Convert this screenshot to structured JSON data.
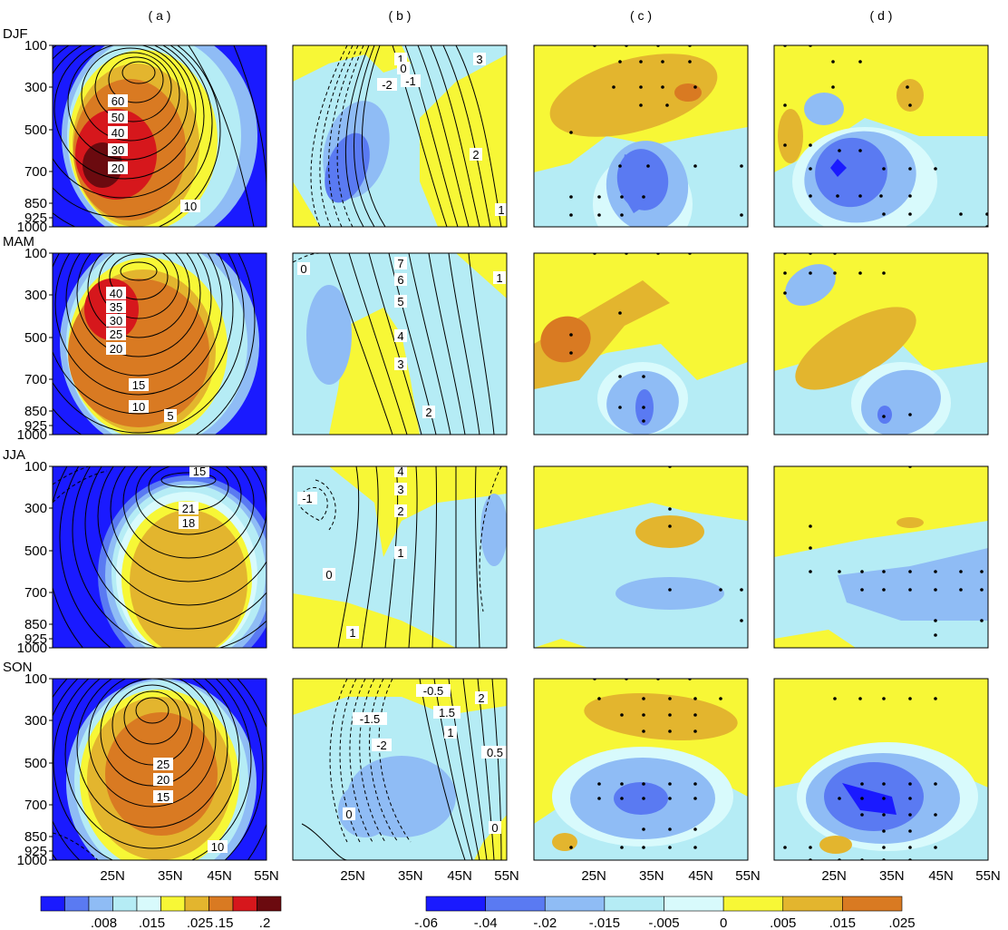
{
  "chart_data": {
    "type": "heatmap",
    "column_titles": [
      "( a )",
      "( b )",
      "( c )",
      "( d )"
    ],
    "seasons": [
      "DJF",
      "MAM",
      "JJA",
      "SON"
    ],
    "y_ticks": [
      "100",
      "300",
      "500",
      "700",
      "850",
      "925",
      "1000"
    ],
    "x_ticks": [
      "25N",
      "35N",
      "45N",
      "55N"
    ],
    "colorbar_a": {
      "colors": [
        "#1a1aff",
        "#5a7af2",
        "#8fbcf5",
        "#b5ecf5",
        "#d8fafc",
        "#f7f736",
        "#e3b52e",
        "#d97a22",
        "#d6171c",
        "#6b0a0f"
      ],
      "ticks": [
        ".008",
        ".015",
        ".025",
        ".15",
        ".2"
      ]
    },
    "colorbar_bcd": {
      "colors": [
        "#1a1aff",
        "#5a7af2",
        "#8fbcf5",
        "#b5ecf5",
        "#d8fafc",
        "#f7f736",
        "#e3b52e",
        "#d97a22"
      ],
      "ticks": [
        "-.06",
        "-.04",
        "-.02",
        "-.015",
        "-.005",
        "0",
        ".005",
        ".015",
        ".025"
      ]
    },
    "contour_labels_a": [
      [
        "60",
        "50",
        "40",
        "30",
        "20",
        "10"
      ],
      [
        "40",
        "35",
        "30",
        "25",
        "20",
        "15",
        "10",
        "5"
      ],
      [
        "15",
        "21",
        "18"
      ],
      [
        "25",
        "20",
        "15",
        "10"
      ]
    ],
    "contour_labels_b": [
      [
        "1",
        "0",
        "-2",
        "-1",
        "3",
        "2",
        "1"
      ],
      [
        "7",
        "6",
        "5",
        "4",
        "3",
        "2",
        "1",
        "0"
      ],
      [
        "4",
        "3",
        "2",
        "-1",
        "1",
        "0",
        "1"
      ],
      [
        "2",
        "-0.5",
        "1.5",
        "-1.5",
        "1",
        "0.5",
        "-2",
        "0",
        "0"
      ]
    ]
  }
}
